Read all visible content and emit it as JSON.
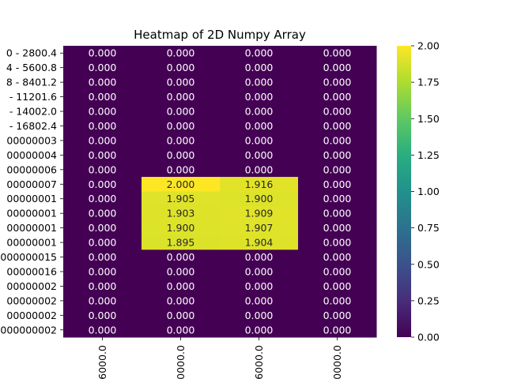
{
  "colors": {
    "zero": "#440154",
    "colormap": "viridis",
    "text_light": "#ffffff",
    "text_dark": "#262626"
  },
  "chart_data": {
    "type": "heatmap",
    "title": "Heatmap of 2D Numpy Array",
    "row_labels": [
      "0 - 2800.4",
      "4 - 5600.8",
      "8 - 8401.2",
      "- 11201.6",
      "- 14002.0",
      "- 16802.4",
      "00000003",
      "00000004",
      "00000006",
      "00000007",
      "00000001",
      "00000001",
      "00000001",
      "00000001",
      "000000015",
      "00000016",
      "00000002",
      "00000002",
      "00000002",
      "000000002"
    ],
    "col_labels": [
      "6000.0",
      "0000.0",
      "6000.0",
      "0000.0"
    ],
    "values": [
      [
        0,
        0,
        0,
        0
      ],
      [
        0,
        0,
        0,
        0
      ],
      [
        0,
        0,
        0,
        0
      ],
      [
        0,
        0,
        0,
        0
      ],
      [
        0,
        0,
        0,
        0
      ],
      [
        0,
        0,
        0,
        0
      ],
      [
        0,
        0,
        0,
        0
      ],
      [
        0,
        0,
        0,
        0
      ],
      [
        0,
        0,
        0,
        0
      ],
      [
        0,
        2.0,
        1.916,
        0
      ],
      [
        0,
        1.905,
        1.9,
        0
      ],
      [
        0,
        1.903,
        1.909,
        0
      ],
      [
        0,
        1.9,
        1.907,
        0
      ],
      [
        0,
        1.895,
        1.904,
        0
      ],
      [
        0,
        0,
        0,
        0
      ],
      [
        0,
        0,
        0,
        0
      ],
      [
        0,
        0,
        0,
        0
      ],
      [
        0,
        0,
        0,
        0
      ],
      [
        0,
        0,
        0,
        0
      ],
      [
        0,
        0,
        0,
        0
      ]
    ],
    "annotation_format": "0.000",
    "vmin": 0,
    "vmax": 2.0,
    "colorbar_ticks": [
      "0.00",
      "0.25",
      "0.50",
      "0.75",
      "1.00",
      "1.25",
      "1.50",
      "1.75",
      "2.00"
    ],
    "colorbar_values": [
      0,
      0.25,
      0.5,
      0.75,
      1.0,
      1.25,
      1.5,
      1.75,
      2.0
    ],
    "grid": false
  }
}
